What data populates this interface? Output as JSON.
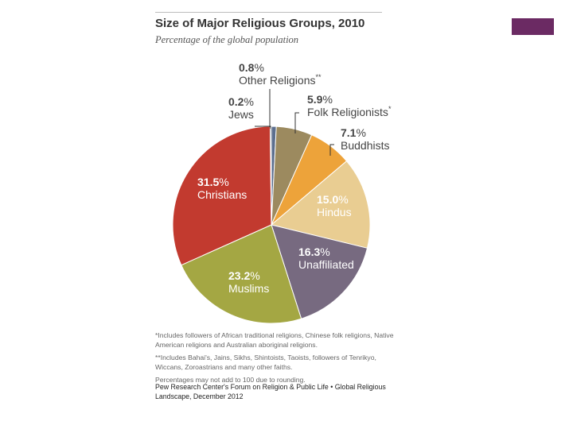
{
  "chart_data": {
    "type": "pie",
    "title": "Size of Major Religious Groups, 2010",
    "subtitle": "Percentage of the global population",
    "unit": "%",
    "slices": [
      {
        "label": "Other Religions",
        "marker": "**",
        "value": 0.8,
        "color": "#5b6e8e"
      },
      {
        "label": "Folk Religionists",
        "marker": "*",
        "value": 5.9,
        "color": "#9c8a5f"
      },
      {
        "label": "Buddhists",
        "marker": "",
        "value": 7.1,
        "color": "#eda33a"
      },
      {
        "label": "Hindus",
        "marker": "",
        "value": 15.0,
        "color": "#e9cd92"
      },
      {
        "label": "Unaffiliated",
        "marker": "",
        "value": 16.3,
        "color": "#776a80"
      },
      {
        "label": "Muslims",
        "marker": "",
        "value": 23.2,
        "color": "#a4a743"
      },
      {
        "label": "Christians",
        "marker": "",
        "value": 31.5,
        "color": "#c23a2f"
      },
      {
        "label": "Jews",
        "marker": "",
        "value": 0.2,
        "color": "#3d4a66"
      }
    ]
  },
  "notes": {
    "folk": "*Includes followers of African traditional religions, Chinese folk religions, Native American religions and Australian aboriginal religions.",
    "other": "**Includes Bahai's, Jains, Sikhs, Shintoists, Taoists, followers of Tenrikyo, Wiccans, Zoroastrians and many other faiths.",
    "rounding": "Percentages may not add to 100 due to rounding."
  },
  "source": "Pew Research Center's Forum on Religion & Public Life • Global Religious Landscape, December 2012"
}
